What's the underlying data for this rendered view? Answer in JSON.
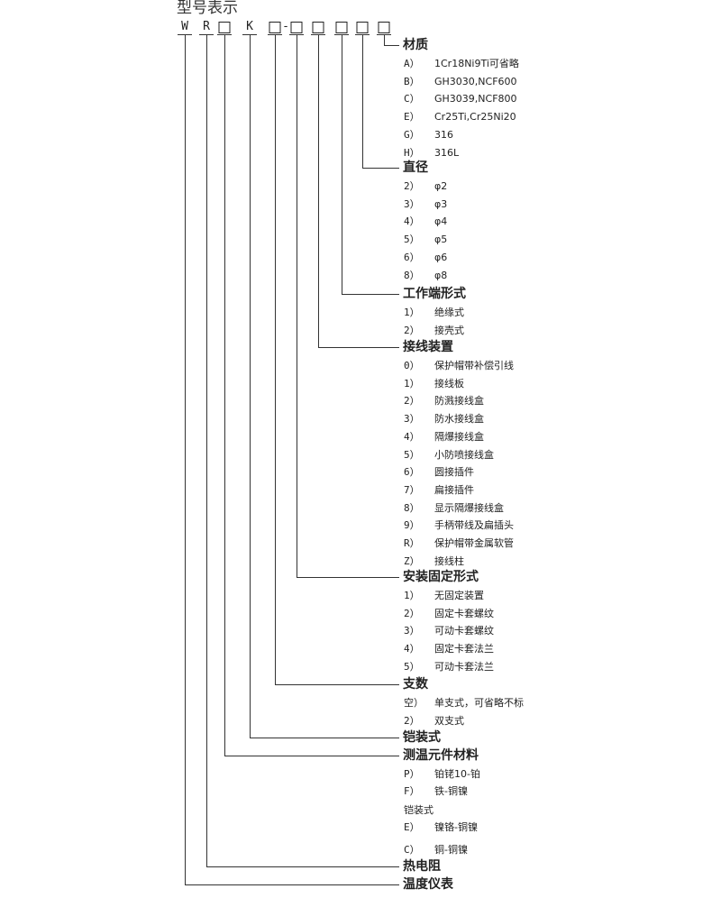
{
  "title": "型号表示",
  "code": [
    "W",
    "R",
    "□",
    "K",
    "□",
    "-",
    "□",
    "□",
    "□",
    "□",
    "□"
  ],
  "sections": [
    {
      "heading": "材质",
      "items": [
        {
          "code": "A）",
          "text": "1Cr18Ni9Ti可省略"
        },
        {
          "code": "B）",
          "text": "GH3030,NCF600"
        },
        {
          "code": "C）",
          "text": "GH3039,NCF800"
        },
        {
          "code": "E）",
          "text": "Cr25Ti,Cr25Ni20"
        },
        {
          "code": "G）",
          "text": "316"
        },
        {
          "code": "H）",
          "text": "316L"
        }
      ]
    },
    {
      "heading": "直径",
      "items": [
        {
          "code": "2）",
          "text": "φ2"
        },
        {
          "code": "3）",
          "text": "φ3"
        },
        {
          "code": "4）",
          "text": "φ4"
        },
        {
          "code": "5）",
          "text": "φ5"
        },
        {
          "code": "6）",
          "text": "φ6"
        },
        {
          "code": "8）",
          "text": "φ8"
        }
      ]
    },
    {
      "heading": "工作端形式",
      "items": [
        {
          "code": "1）",
          "text": "绝缘式"
        },
        {
          "code": "2）",
          "text": "接壳式"
        }
      ]
    },
    {
      "heading": "接线装置",
      "items": [
        {
          "code": "0）",
          "text": "保护帽带补偿引线"
        },
        {
          "code": "1）",
          "text": "接线板"
        },
        {
          "code": "2）",
          "text": "防溅接线盒"
        },
        {
          "code": "3）",
          "text": "防水接线盒"
        },
        {
          "code": "4）",
          "text": "隔爆接线盒"
        },
        {
          "code": "5）",
          "text": "小防喷接线盒"
        },
        {
          "code": "6）",
          "text": "圆接插件"
        },
        {
          "code": "7）",
          "text": "扁接插件"
        },
        {
          "code": "8）",
          "text": "显示隔爆接线盒"
        },
        {
          "code": "9）",
          "text": "手柄带线及扁插头"
        },
        {
          "code": "R）",
          "text": "保护帽带金属软管"
        },
        {
          "code": "Z）",
          "text": "接线柱"
        }
      ]
    },
    {
      "heading": "安装固定形式",
      "items": [
        {
          "code": "1）",
          "text": "无固定装置"
        },
        {
          "code": "2）",
          "text": "固定卡套螺纹"
        },
        {
          "code": "3）",
          "text": "可动卡套螺纹"
        },
        {
          "code": "4）",
          "text": "固定卡套法兰"
        },
        {
          "code": "5）",
          "text": "可动卡套法兰"
        }
      ]
    },
    {
      "heading": "支数",
      "items": [
        {
          "code": "空）",
          "text": "单支式，可省略不标"
        },
        {
          "code": "2）",
          "text": "双支式"
        }
      ]
    },
    {
      "heading": "铠装式",
      "items": []
    },
    {
      "heading": "测温元件材料",
      "items": [
        {
          "code": "P）",
          "text": "铂铑10-铂"
        },
        {
          "code": "F）",
          "text": "铁-铜镍"
        },
        {
          "code": "铠装式",
          "text": ""
        },
        {
          "code": "E）",
          "text": "镍铬-铜镍"
        },
        {
          "code": "C）",
          "text": "铜-铜镍"
        }
      ]
    },
    {
      "heading": "热电阻",
      "items": []
    },
    {
      "heading": "温度仪表",
      "items": []
    }
  ]
}
